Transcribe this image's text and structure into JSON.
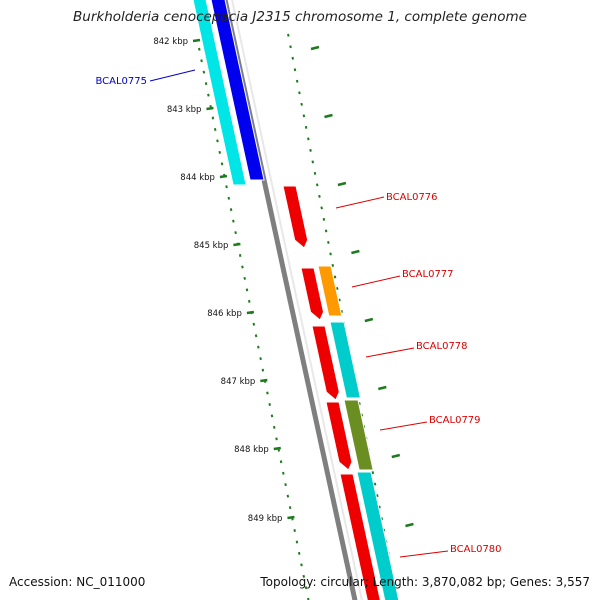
{
  "title": "Burkholderia cenocepacia J2315 chromosome 1, complete genome",
  "footer": {
    "accession": "Accession: NC_011000",
    "summary": "Topology: circular; Length: 3,870,082 bp; Genes: 3,557"
  },
  "colors": {
    "backbone": "#7f7f7f",
    "tick_green": "#1e7a1e",
    "scale_label": "#111111",
    "label_blue": "#0000cc",
    "label_red": "#dd0000"
  },
  "scale_ticks": [
    "842 kbp",
    "843 kbp",
    "844 kbp",
    "845 kbp",
    "846 kbp",
    "847 kbp",
    "848 kbp",
    "849 kbp"
  ],
  "genes": [
    {
      "label": "BCAL0775",
      "label_color": "#0000cc"
    },
    {
      "label": "BCAL0776",
      "label_color": "#dd0000"
    },
    {
      "label": "BCAL0777",
      "label_color": "#dd0000"
    },
    {
      "label": "BCAL0778",
      "label_color": "#dd0000"
    },
    {
      "label": "BCAL0779",
      "label_color": "#dd0000"
    },
    {
      "label": "BCAL0780",
      "label_color": "#dd0000"
    }
  ],
  "tracks": {
    "reverse_cyan": "#00e5e5",
    "reverse_blue": "#0000ee",
    "forward_red": "#ee0000",
    "orange": "#ff9900",
    "cyan": "#00cccc",
    "olive": "#6b8e23"
  }
}
